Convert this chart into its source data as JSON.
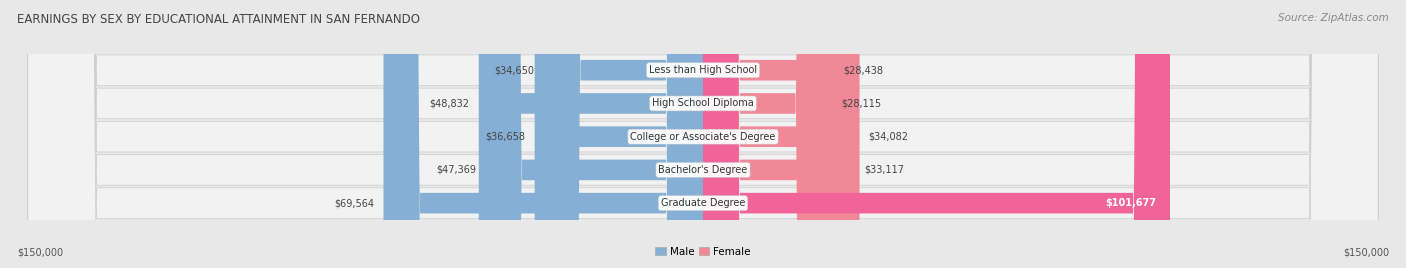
{
  "title": "EARNINGS BY SEX BY EDUCATIONAL ATTAINMENT IN SAN FERNANDO",
  "source": "Source: ZipAtlas.com",
  "categories": [
    "Less than High School",
    "High School Diploma",
    "College or Associate's Degree",
    "Bachelor's Degree",
    "Graduate Degree"
  ],
  "male_values": [
    34650,
    48832,
    36658,
    47369,
    69564
  ],
  "female_values": [
    28438,
    28115,
    34082,
    33117,
    101677
  ],
  "max_scale": 150000,
  "male_color": "#85afd4",
  "female_color": "#f08898",
  "female_color_bright": "#f0649a",
  "male_label": "Male",
  "female_label": "Female",
  "bar_height": 0.62,
  "bg_color": "#e8e8e8",
  "row_bg_color": "#f2f2f2",
  "title_fontsize": 8.5,
  "source_fontsize": 7.5,
  "label_fontsize": 7.5,
  "category_fontsize": 7.0,
  "value_fontsize": 7.0,
  "axis_label_left": "$150,000",
  "axis_label_right": "$150,000"
}
